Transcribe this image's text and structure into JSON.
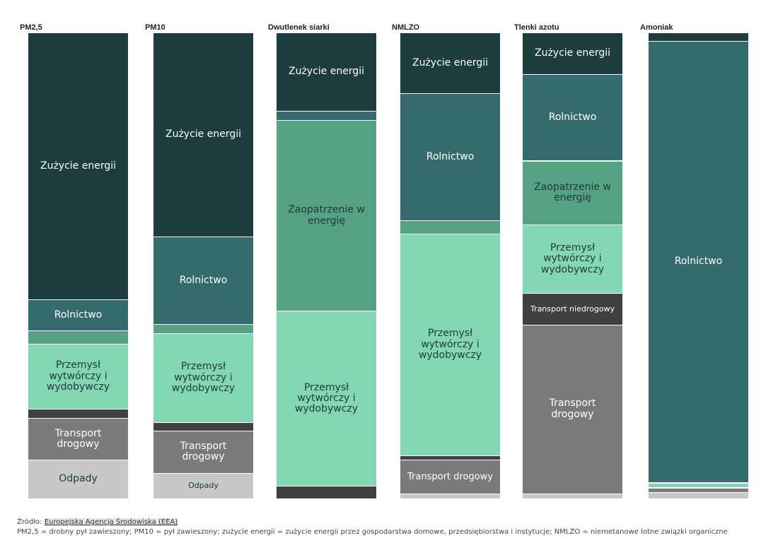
{
  "colors": {
    "Zużycie energii": "#1c3c3d",
    "Rolnictwo": "#356b6c",
    "Zaopatrzenie w energię": "#56a183",
    "Przemysł wytwórczy i wydobywczy": "#84d7b5",
    "Transport niedrogowy": "#404040",
    "Transport drogowy": "#7a7a7a",
    "Odpady": "#c8c8c8"
  },
  "chart_data": {
    "type": "bar",
    "stacked": true,
    "normalized": true,
    "categories": [
      "PM2,5",
      "PM10",
      "Dwutlenek siarki",
      "NMLZO",
      "Tlenki azotu",
      "Amoniak"
    ],
    "series": [
      {
        "name": "Zużycie energii",
        "label": "Zużycie energii",
        "values": [
          57.3,
          43.8,
          16.8,
          13.0,
          8.9,
          1.8
        ]
      },
      {
        "name": "Rolnictwo",
        "label": "Rolnictwo",
        "values": [
          6.7,
          18.8,
          2.0,
          27.3,
          18.6,
          94.7
        ]
      },
      {
        "name": "Zaopatrzenie w energię",
        "label": "Zaopatrzenie w energię",
        "values": [
          2.8,
          2.0,
          40.9,
          2.9,
          13.7,
          0.2
        ]
      },
      {
        "name": "Przemysł wytwórczy i wydobywczy",
        "label": "Przemysł wytwórczy i wydobywczy",
        "values": [
          14.0,
          19.0,
          37.6,
          47.5,
          14.7,
          0.9
        ]
      },
      {
        "name": "Transport niedrogowy",
        "label": "Transport niedrogowy",
        "values": [
          2.0,
          1.9,
          2.7,
          1.0,
          6.8,
          0.2
        ]
      },
      {
        "name": "Transport drogowy",
        "label": "Transport drogowy",
        "values": [
          8.9,
          9.0,
          0,
          7.3,
          36.2,
          0.8
        ]
      },
      {
        "name": "Odpady",
        "label": "Odpady",
        "values": [
          8.3,
          5.5,
          0,
          1.0,
          1.1,
          1.4
        ]
      }
    ]
  },
  "footer": {
    "source_prefix": "Źródło: ",
    "source_link": "Europejska Agencja Środowiska (EEA)",
    "note": "PM2,5 = drobny pył zawieszony; PM10 = pył zawieszony; zużycie energii = zużycie energii przez gospodarstwa domowe, przedsiębiorstwa i instytucje; NMLZO = niemetanowe lotne związki organiczne"
  }
}
